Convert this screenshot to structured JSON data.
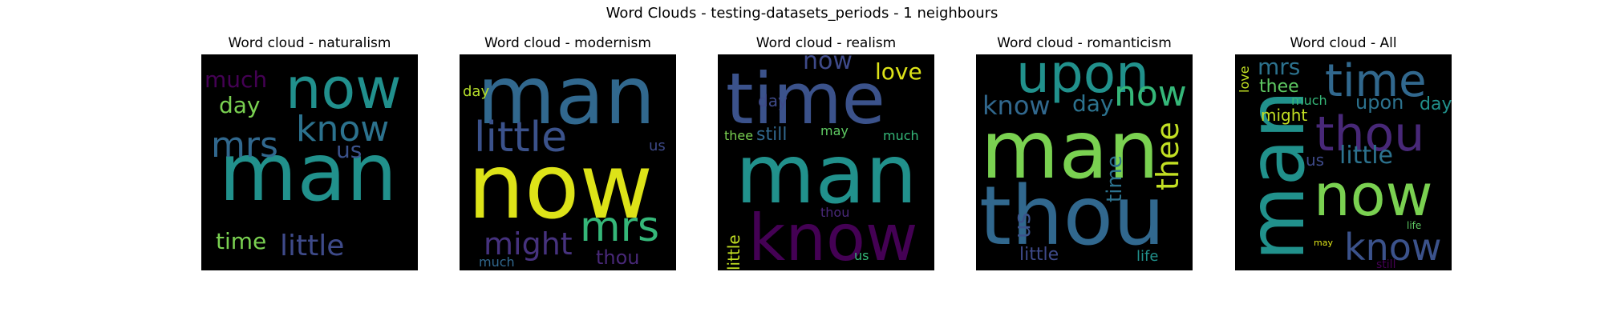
{
  "title": "Word Clouds - testing-datasets_periods - 1 neighbours",
  "chart_data": [
    {
      "type": "wordcloud",
      "title": "Word cloud - naturalism",
      "words": [
        {
          "text": "now",
          "weight": 0.85,
          "color": "#21908d",
          "orientation": "horizontal"
        },
        {
          "text": "man",
          "weight": 1.0,
          "color": "#21918c",
          "orientation": "horizontal"
        },
        {
          "text": "know",
          "weight": 0.55,
          "color": "#2c728e",
          "orientation": "horizontal"
        },
        {
          "text": "mrs",
          "weight": 0.55,
          "color": "#31688e",
          "orientation": "horizontal"
        },
        {
          "text": "much",
          "weight": 0.38,
          "color": "#440154",
          "orientation": "horizontal"
        },
        {
          "text": "day",
          "weight": 0.4,
          "color": "#7ad151",
          "orientation": "horizontal"
        },
        {
          "text": "us",
          "weight": 0.35,
          "color": "#3b528b",
          "orientation": "horizontal"
        },
        {
          "text": "time",
          "weight": 0.4,
          "color": "#7ad151",
          "orientation": "horizontal"
        },
        {
          "text": "little",
          "weight": 0.5,
          "color": "#3e4a89",
          "orientation": "horizontal"
        }
      ]
    },
    {
      "type": "wordcloud",
      "title": "Word cloud - modernism",
      "words": [
        {
          "text": "man",
          "weight": 1.0,
          "color": "#31688e",
          "orientation": "horizontal"
        },
        {
          "text": "day",
          "weight": 0.25,
          "color": "#b5de2b",
          "orientation": "horizontal"
        },
        {
          "text": "little",
          "weight": 0.55,
          "color": "#3b528b",
          "orientation": "horizontal"
        },
        {
          "text": "us",
          "weight": 0.25,
          "color": "#3e4a89",
          "orientation": "horizontal"
        },
        {
          "text": "now",
          "weight": 1.0,
          "color": "#dde318",
          "orientation": "horizontal"
        },
        {
          "text": "mrs",
          "weight": 0.6,
          "color": "#35b779",
          "orientation": "horizontal"
        },
        {
          "text": "might",
          "weight": 0.48,
          "color": "#46327e",
          "orientation": "horizontal"
        },
        {
          "text": "thou",
          "weight": 0.35,
          "color": "#482878",
          "orientation": "horizontal"
        },
        {
          "text": "much",
          "weight": 0.22,
          "color": "#31688e",
          "orientation": "horizontal"
        }
      ]
    },
    {
      "type": "wordcloud",
      "title": "Word cloud - realism",
      "words": [
        {
          "text": "now",
          "weight": 0.4,
          "color": "#3e4a89",
          "orientation": "horizontal"
        },
        {
          "text": "time",
          "weight": 0.85,
          "color": "#3b528b",
          "orientation": "horizontal"
        },
        {
          "text": "love",
          "weight": 0.38,
          "color": "#dde318",
          "orientation": "horizontal"
        },
        {
          "text": "day",
          "weight": 0.25,
          "color": "#3e4a89",
          "orientation": "horizontal"
        },
        {
          "text": "thee",
          "weight": 0.22,
          "color": "#7ad151",
          "orientation": "horizontal"
        },
        {
          "text": "still",
          "weight": 0.28,
          "color": "#31688e",
          "orientation": "horizontal"
        },
        {
          "text": "may",
          "weight": 0.2,
          "color": "#5ec962",
          "orientation": "horizontal"
        },
        {
          "text": "much",
          "weight": 0.2,
          "color": "#35b779",
          "orientation": "horizontal"
        },
        {
          "text": "man",
          "weight": 1.0,
          "color": "#21918c",
          "orientation": "horizontal"
        },
        {
          "text": "thou",
          "weight": 0.2,
          "color": "#482878",
          "orientation": "horizontal"
        },
        {
          "text": "little",
          "weight": 0.28,
          "color": "#c2df23",
          "orientation": "vertical"
        },
        {
          "text": "know",
          "weight": 0.85,
          "color": "#440154",
          "orientation": "horizontal"
        },
        {
          "text": "us",
          "weight": 0.18,
          "color": "#35b779",
          "orientation": "horizontal"
        }
      ]
    },
    {
      "type": "wordcloud",
      "title": "Word cloud - romanticism",
      "words": [
        {
          "text": "upon",
          "weight": 0.65,
          "color": "#21918c",
          "orientation": "horizontal"
        },
        {
          "text": "know",
          "weight": 0.38,
          "color": "#31688e",
          "orientation": "horizontal"
        },
        {
          "text": "day",
          "weight": 0.32,
          "color": "#2c728e",
          "orientation": "horizontal"
        },
        {
          "text": "now",
          "weight": 0.48,
          "color": "#35b779",
          "orientation": "horizontal"
        },
        {
          "text": "man",
          "weight": 1.0,
          "color": "#7ad151",
          "orientation": "horizontal"
        },
        {
          "text": "time",
          "weight": 0.32,
          "color": "#2c728e",
          "orientation": "vertical"
        },
        {
          "text": "thee",
          "weight": 0.45,
          "color": "#c2df23",
          "orientation": "vertical"
        },
        {
          "text": "thou",
          "weight": 1.0,
          "color": "#31688e",
          "orientation": "horizontal"
        },
        {
          "text": "us",
          "weight": 0.35,
          "color": "#3b528b",
          "orientation": "vertical"
        },
        {
          "text": "little",
          "weight": 0.32,
          "color": "#3e4a89",
          "orientation": "horizontal"
        },
        {
          "text": "life",
          "weight": 0.22,
          "color": "#21918c",
          "orientation": "horizontal"
        }
      ]
    },
    {
      "type": "wordcloud",
      "title": "Word cloud - All",
      "words": [
        {
          "text": "love",
          "weight": 0.18,
          "color": "#c2df23",
          "orientation": "vertical"
        },
        {
          "text": "mrs",
          "weight": 0.35,
          "color": "#2c728e",
          "orientation": "horizontal"
        },
        {
          "text": "thee",
          "weight": 0.3,
          "color": "#5ec962",
          "orientation": "horizontal"
        },
        {
          "text": "time",
          "weight": 0.6,
          "color": "#31688e",
          "orientation": "horizontal"
        },
        {
          "text": "man",
          "weight": 1.0,
          "color": "#21918c",
          "orientation": "vertical"
        },
        {
          "text": "much",
          "weight": 0.2,
          "color": "#35b779",
          "orientation": "horizontal"
        },
        {
          "text": "upon",
          "weight": 0.3,
          "color": "#2c728e",
          "orientation": "horizontal"
        },
        {
          "text": "day",
          "weight": 0.28,
          "color": "#21918c",
          "orientation": "horizontal"
        },
        {
          "text": "might",
          "weight": 0.22,
          "color": "#c2df23",
          "orientation": "horizontal"
        },
        {
          "text": "thou",
          "weight": 0.65,
          "color": "#482878",
          "orientation": "horizontal"
        },
        {
          "text": "us",
          "weight": 0.22,
          "color": "#3e4a89",
          "orientation": "horizontal"
        },
        {
          "text": "little",
          "weight": 0.35,
          "color": "#2c728e",
          "orientation": "horizontal"
        },
        {
          "text": "now",
          "weight": 0.85,
          "color": "#7ad151",
          "orientation": "horizontal"
        },
        {
          "text": "life",
          "weight": 0.12,
          "color": "#5ec962",
          "orientation": "horizontal"
        },
        {
          "text": "may",
          "weight": 0.12,
          "color": "#dde318",
          "orientation": "horizontal"
        },
        {
          "text": "know",
          "weight": 0.55,
          "color": "#3b528b",
          "orientation": "horizontal"
        },
        {
          "text": "still",
          "weight": 0.15,
          "color": "#440154",
          "orientation": "horizontal"
        }
      ]
    }
  ]
}
